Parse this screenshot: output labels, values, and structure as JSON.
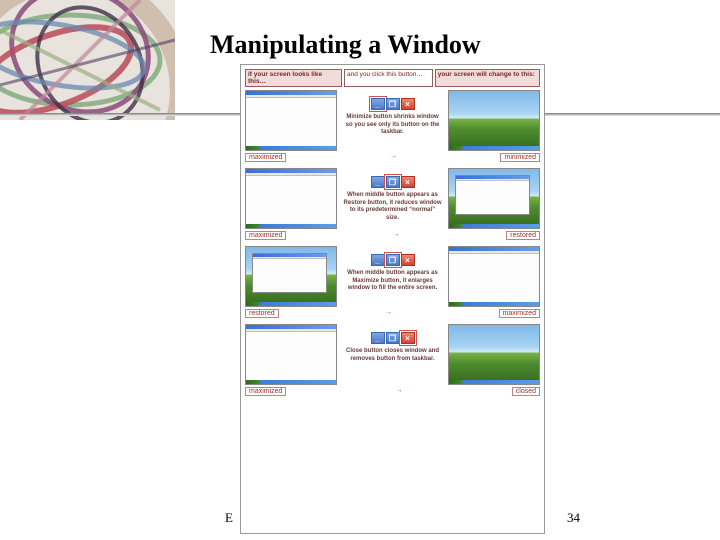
{
  "title": "Manipulating a Window",
  "page_number": "34",
  "footer_fragment": "E",
  "colors": {
    "xp_sky": "#7fb8e8",
    "xp_hill": "#4e8c2e",
    "titlebar": "#4a78c8",
    "close_btn": "#d04530",
    "label_text": "#a03030",
    "label_border": "#c88080"
  },
  "figure_header": {
    "col1": "if your screen looks like this…",
    "col2": "and you click this button…",
    "col3": "your screen will change to this:"
  },
  "rows": [
    {
      "left_state": "maximized",
      "right_state": "minimized",
      "left_thumb": "app_max",
      "right_thumb": "desktop",
      "caption": "Minimize button shrinks window so you see only its button on the taskbar.",
      "highlight": "min"
    },
    {
      "left_state": "maximized",
      "right_state": "restored",
      "left_thumb": "app_max",
      "right_thumb": "inner_window",
      "caption": "When middle button appears as Restore button, it reduces window to its predetermined “normal” size.",
      "highlight": "mid"
    },
    {
      "left_state": "restored",
      "right_state": "maximized",
      "left_thumb": "inner_window",
      "right_thumb": "app_max",
      "caption": "When middle button appears as Maximize button, it enlarges window to fill the entire screen.",
      "highlight": "mid"
    },
    {
      "left_state": "maximized",
      "right_state": "closed",
      "left_thumb": "app_max",
      "right_thumb": "desktop",
      "caption": "Close button closes window and removes button from taskbar.",
      "highlight": "close"
    }
  ]
}
